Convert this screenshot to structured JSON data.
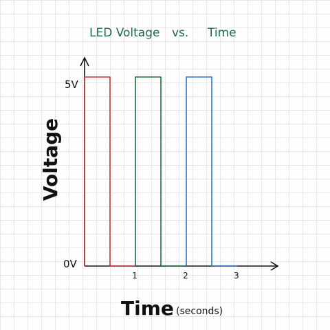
{
  "chart_data": {
    "type": "line",
    "title_parts": [
      "LED Voltage",
      "vs.",
      "Time"
    ],
    "ylabel": "Voltage",
    "xlabel": "Time",
    "xlabel_unit": "(seconds)",
    "y_tick_labels": [
      "0V",
      "5V"
    ],
    "x_tick_labels": [
      "1",
      "2",
      "3"
    ],
    "xlim": [
      0,
      3.8
    ],
    "ylim": [
      0,
      5.8
    ],
    "grid": true,
    "series": [
      {
        "color": "#cc3333",
        "x": [
          0,
          0,
          0.5,
          0.5,
          1
        ],
        "y": [
          0,
          5,
          5,
          0,
          0
        ]
      },
      {
        "color": "#1f6b3a",
        "x": [
          1,
          1,
          1.5,
          1.5,
          2
        ],
        "y": [
          0,
          5,
          5,
          0,
          0
        ]
      },
      {
        "color": "#2f6fcf",
        "x": [
          2,
          2,
          2.5,
          2.5,
          3
        ],
        "y": [
          0,
          5,
          5,
          0,
          0
        ]
      }
    ]
  }
}
